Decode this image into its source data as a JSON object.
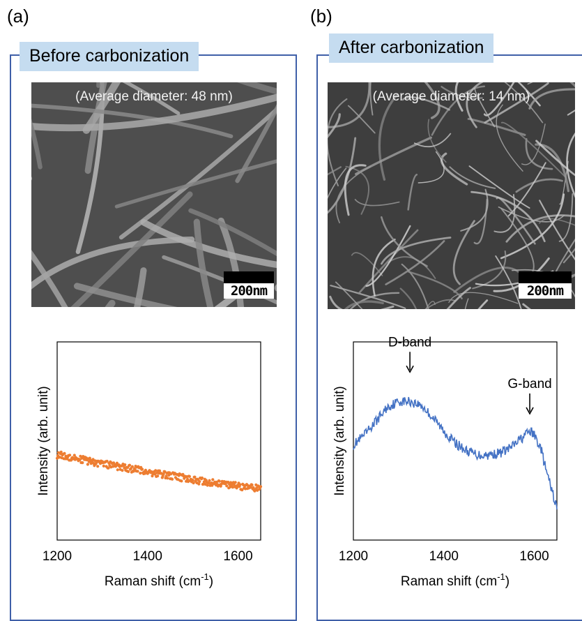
{
  "panels": [
    {
      "letter": "(a)",
      "title": "Before carbonization",
      "sem_caption": "(Average diameter: 48 nm)",
      "scale_label": "200nm"
    },
    {
      "letter": "(b)",
      "title": "After carbonization",
      "sem_caption": "(Average diameter: 14 nm)",
      "scale_label": "200nm"
    }
  ],
  "chart_data": [
    {
      "type": "scatter",
      "title": "",
      "xlabel": "Raman shift (cm",
      "xlabel_sup": "-1",
      "xlabel_close": ")",
      "ylabel": "Intensity (arb. unit)",
      "xlim": [
        1200,
        1650
      ],
      "ylim": [
        0,
        1
      ],
      "xticks": [
        "1200",
        "1400",
        "1600"
      ],
      "grid": false,
      "series": [
        {
          "color": "#ed7d31",
          "points": [
            [
              1200,
              0.43
            ],
            [
              1225,
              0.42
            ],
            [
              1250,
              0.41
            ],
            [
              1275,
              0.395
            ],
            [
              1300,
              0.385
            ],
            [
              1325,
              0.375
            ],
            [
              1350,
              0.365
            ],
            [
              1375,
              0.355
            ],
            [
              1400,
              0.345
            ],
            [
              1425,
              0.335
            ],
            [
              1450,
              0.325
            ],
            [
              1475,
              0.315
            ],
            [
              1500,
              0.305
            ],
            [
              1525,
              0.295
            ],
            [
              1550,
              0.29
            ],
            [
              1575,
              0.28
            ],
            [
              1600,
              0.272
            ],
            [
              1625,
              0.265
            ],
            [
              1650,
              0.26
            ]
          ]
        }
      ]
    },
    {
      "type": "line",
      "title": "",
      "xlabel": "Raman shift (cm",
      "xlabel_sup": "-1",
      "xlabel_close": ")",
      "ylabel": "Intensity (arb. unit)",
      "xlim": [
        1200,
        1650
      ],
      "ylim": [
        0,
        1
      ],
      "xticks": [
        "1200",
        "1400",
        "1600"
      ],
      "grid": false,
      "annotations": [
        {
          "text": "D-band",
          "x": 1325,
          "y": 0.83
        },
        {
          "text": "G-band",
          "x": 1590,
          "y": 0.62
        }
      ],
      "series": [
        {
          "color": "#4472c4",
          "points": [
            [
              1200,
              0.48
            ],
            [
              1225,
              0.53
            ],
            [
              1250,
              0.6
            ],
            [
              1275,
              0.67
            ],
            [
              1300,
              0.7
            ],
            [
              1325,
              0.7
            ],
            [
              1350,
              0.68
            ],
            [
              1375,
              0.62
            ],
            [
              1400,
              0.55
            ],
            [
              1425,
              0.49
            ],
            [
              1450,
              0.45
            ],
            [
              1475,
              0.43
            ],
            [
              1500,
              0.43
            ],
            [
              1525,
              0.44
            ],
            [
              1550,
              0.47
            ],
            [
              1575,
              0.52
            ],
            [
              1590,
              0.55
            ],
            [
              1600,
              0.53
            ],
            [
              1615,
              0.46
            ],
            [
              1625,
              0.36
            ],
            [
              1640,
              0.24
            ],
            [
              1650,
              0.16
            ]
          ]
        }
      ]
    }
  ]
}
